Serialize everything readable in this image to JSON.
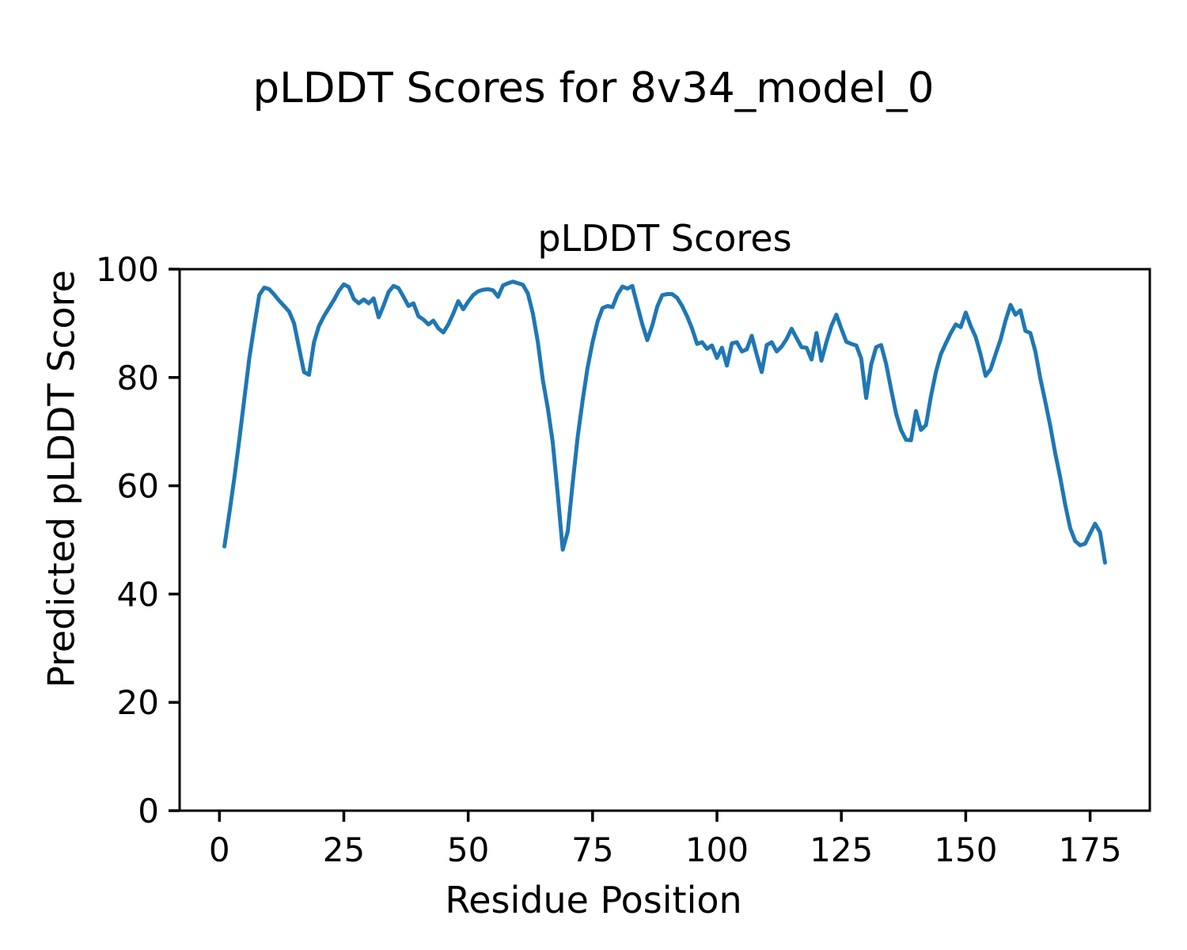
{
  "figure": {
    "suptitle": "pLDDT Scores for 8v34_model_0"
  },
  "chart_data": {
    "type": "line",
    "title": "pLDDT Scores",
    "xlabel": "Residue Position",
    "ylabel": "Predicted pLDDT Score",
    "x_ticks": [
      0,
      25,
      50,
      75,
      100,
      125,
      150,
      175
    ],
    "y_ticks": [
      0,
      20,
      40,
      60,
      80,
      100
    ],
    "xlim": [
      -8.0,
      187.0
    ],
    "ylim": [
      0,
      100
    ],
    "grid": false,
    "legend": "none",
    "background_color": "#ffffff",
    "spine_color": "#000000",
    "line_color": "#1f77b4",
    "line_width": 5,
    "series": [
      {
        "name": "pLDDT",
        "x_start": 1,
        "x_step": 1,
        "values": [
          48.8,
          55,
          61.5,
          68.5,
          76,
          83.5,
          89.5,
          95.2,
          96.6,
          96.3,
          95.3,
          94.2,
          93.2,
          92.2,
          90,
          85.5,
          81,
          80.5,
          86.5,
          89.5,
          91.3,
          92.8,
          94.3,
          96,
          97.2,
          96.7,
          94.5,
          93.7,
          94.4,
          93.7,
          94.6,
          91.1,
          93.3,
          95.8,
          96.9,
          96.5,
          94.9,
          93.2,
          93.7,
          91.3,
          90.7,
          89.8,
          90.5,
          89.1,
          88.3,
          89.8,
          91.8,
          94.1,
          92.6,
          94,
          95.2,
          95.9,
          96.2,
          96.3,
          96.1,
          94.9,
          97,
          97.4,
          97.7,
          97.4,
          97.1,
          95.5,
          91.8,
          86.5,
          79.5,
          74.3,
          68,
          58.5,
          48.2,
          51.5,
          60.5,
          69,
          75.8,
          81.8,
          86.5,
          90.3,
          92.8,
          93.2,
          93,
          95.3,
          96.8,
          96.4,
          96.9,
          93.3,
          89.8,
          86.9,
          89.6,
          93.1,
          95.2,
          95.4,
          95.4,
          94.7,
          93.2,
          91.3,
          89,
          86.2,
          86.5,
          85.3,
          85.9,
          83.6,
          85.5,
          82.2,
          86.3,
          86.5,
          84.8,
          85.2,
          87.7,
          84.2,
          81,
          86,
          86.5,
          84.8,
          85.7,
          87.1,
          89,
          87.3,
          85.6,
          85.5,
          83.3,
          88.2,
          83.1,
          86.5,
          89.5,
          91.6,
          89,
          86.6,
          86.2,
          85.9,
          83.5,
          76.2,
          82.4,
          85.6,
          86,
          82.5,
          77.8,
          73.3,
          70.3,
          68.5,
          68.4,
          73.8,
          70.3,
          71.2,
          76.5,
          81,
          84.3,
          86.3,
          88.2,
          89.8,
          89.3,
          92,
          89.5,
          87.5,
          84.2,
          80.3,
          81.5,
          84.3,
          87,
          90.5,
          93.4,
          91.6,
          92.4,
          88.6,
          88.2,
          84.8,
          79.8,
          75.5,
          71,
          66,
          61.5,
          56.5,
          52.2,
          49.8,
          49,
          49.3,
          51.2,
          53,
          51.4,
          45.8
        ]
      }
    ]
  }
}
